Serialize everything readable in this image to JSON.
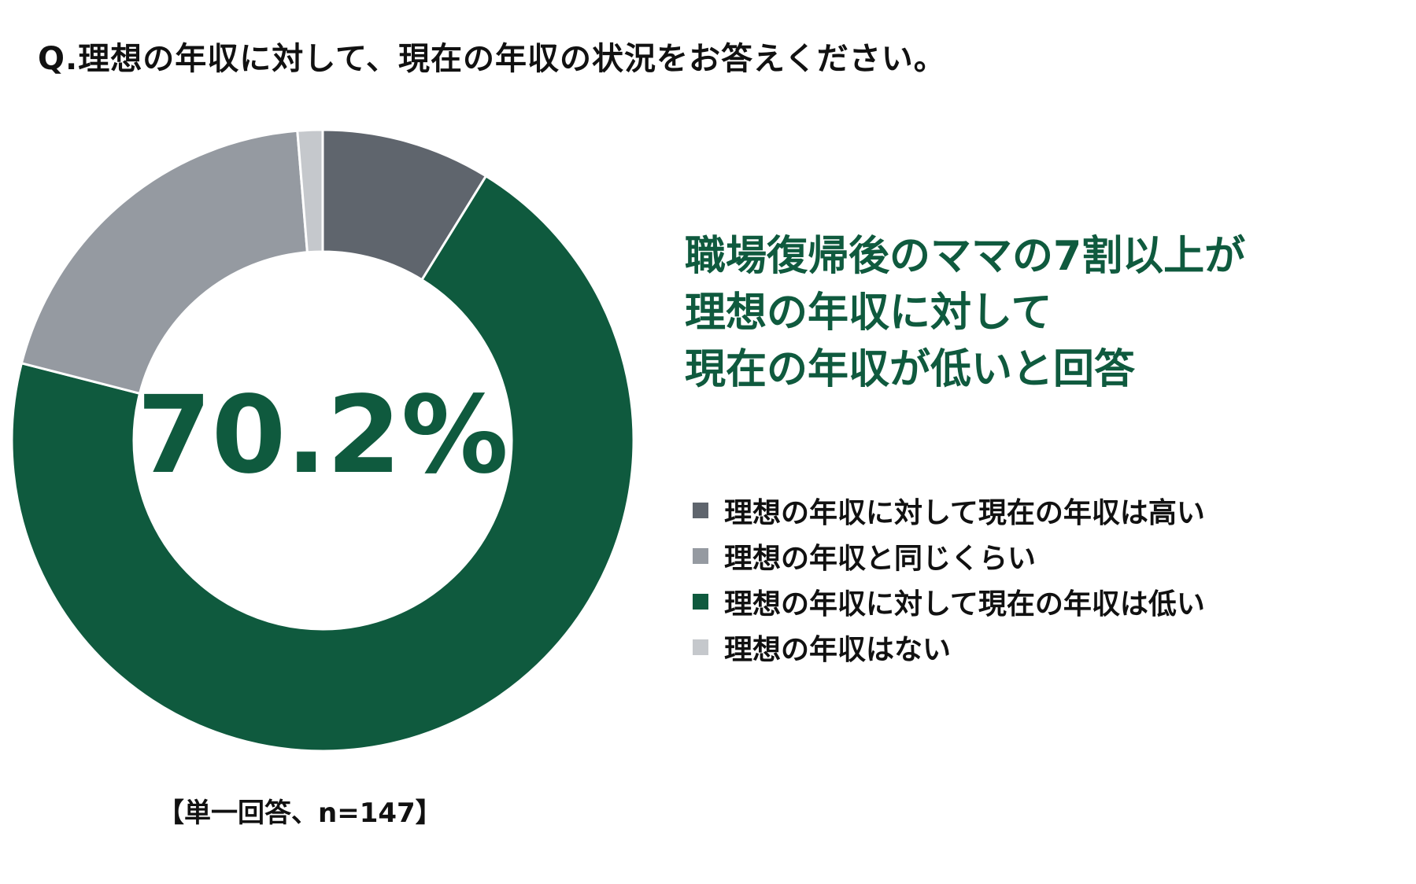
{
  "question": "Q.理想の年収に対して、現在の年収の状況をお答えください。",
  "headline": {
    "lines": [
      "職場復帰後のママの7割以上が",
      "理想の年収に対して",
      "現在の年収が低いと回答"
    ]
  },
  "center_label": "70.2%",
  "note": "【単一回答、n=147】",
  "colors": {
    "accent_green": "#0f5a3e",
    "center_label": "#0f5a3e",
    "headline": "#0f5a3e"
  },
  "chart_data": {
    "type": "pie",
    "style": "donut",
    "start_angle": "12-o'clock",
    "direction": "clockwise",
    "legend_position": "right",
    "series": [
      {
        "name": "理想の年収に対して現在の年収は高い",
        "value": 8.8,
        "color": "#5f656d"
      },
      {
        "name": "理想の年収に対して現在の年収は低い",
        "value": 70.2,
        "color": "#0f5a3e"
      },
      {
        "name": "理想の年収と同じくらい",
        "value": 19.7,
        "color": "#959aa1"
      },
      {
        "name": "理想の年収はない",
        "value": 1.3,
        "color": "#c5c8cc"
      }
    ]
  },
  "legend": [
    {
      "label": "理想の年収に対して現在の年収は高い",
      "color": "#5f656d"
    },
    {
      "label": "理想の年収と同じくらい",
      "color": "#959aa1"
    },
    {
      "label": "理想の年収に対して現在の年収は低い",
      "color": "#0f5a3e"
    },
    {
      "label": "理想の年収はない",
      "color": "#c5c8cc"
    }
  ]
}
